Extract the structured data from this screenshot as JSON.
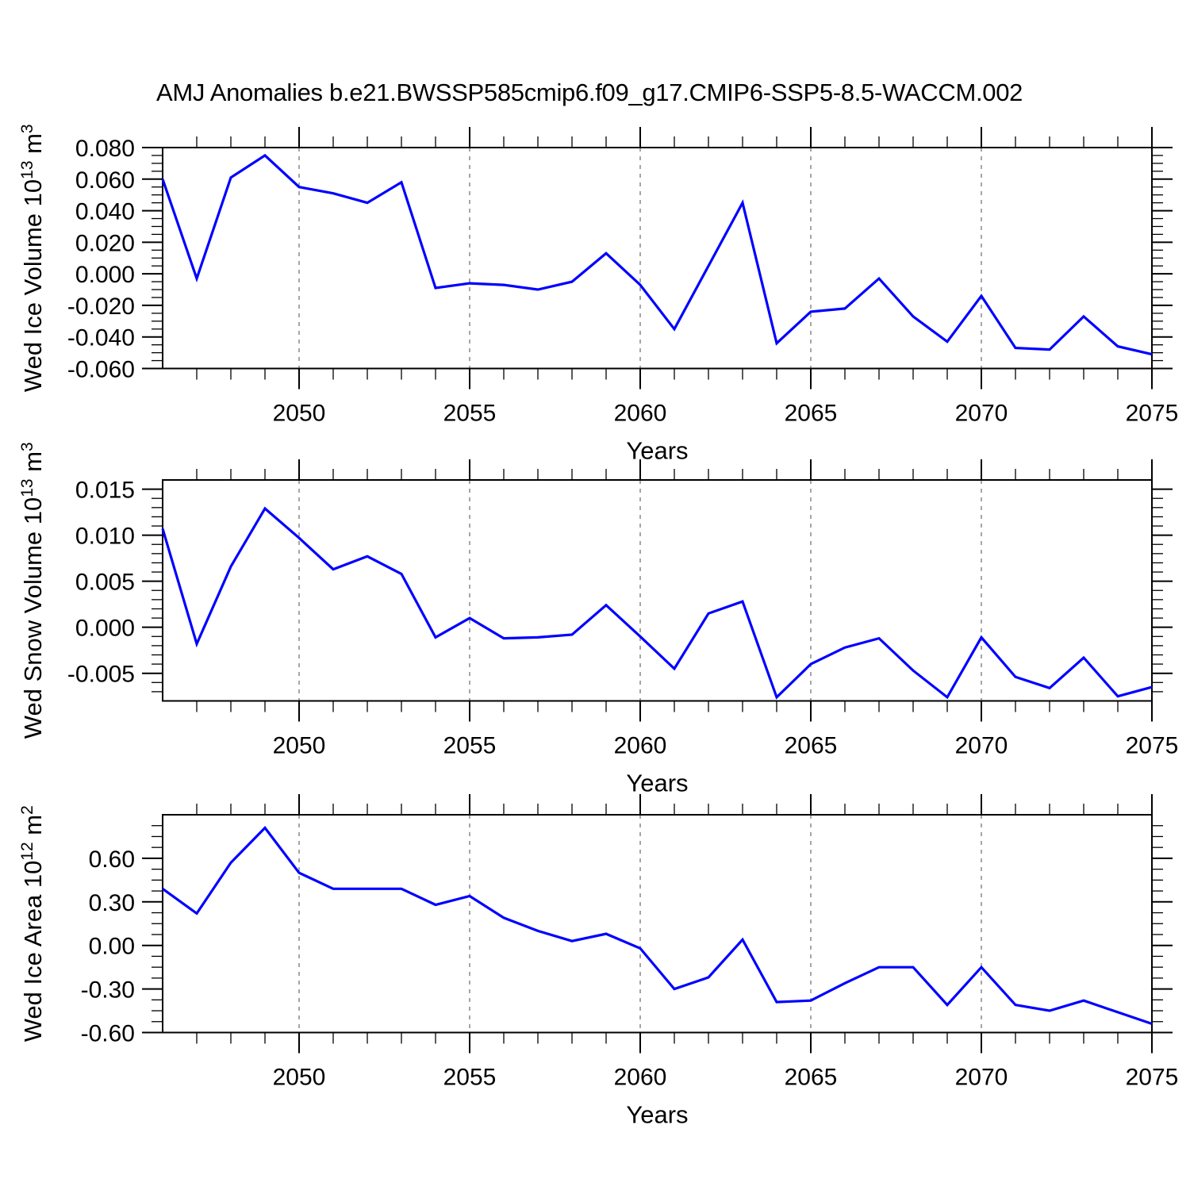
{
  "title": "AMJ Anomalies b.e21.BWSSP585cmip6.f09_g17.CMIP6-SSP5-8.5-WACCM.002",
  "colors": {
    "line": "#0000FF",
    "axis": "#000000",
    "gridline": "#888888",
    "background": "#FFFFFF",
    "text": "#000000"
  },
  "x_axis": {
    "title": "Years",
    "range": [
      2046,
      2075
    ],
    "major_ticks": [
      2050,
      2055,
      2060,
      2065,
      2070,
      2075
    ],
    "minor_step": 1,
    "dashed_gridlines": [
      2050,
      2055,
      2060,
      2065,
      2070
    ],
    "years": [
      2046,
      2047,
      2048,
      2049,
      2050,
      2051,
      2052,
      2053,
      2054,
      2055,
      2056,
      2057,
      2058,
      2059,
      2060,
      2061,
      2062,
      2063,
      2064,
      2065,
      2066,
      2067,
      2068,
      2069,
      2070,
      2071,
      2072,
      2073,
      2074,
      2075
    ]
  },
  "chart_data": [
    {
      "type": "line",
      "name": "wed-ice-volume",
      "ylabel_text": "Wed Ice Volume 10^13 m^3",
      "ylabel_parts": [
        {
          "t": "Wed Ice Volume 10"
        },
        {
          "t": "13",
          "sup": true
        },
        {
          "t": " m"
        },
        {
          "t": "3",
          "sup": true
        }
      ],
      "xlabel": "Years",
      "ylim": [
        -0.06,
        0.08
      ],
      "y_tick_labels": [
        "0.080",
        "0.060",
        "0.040",
        "0.020",
        "0.000",
        "-0.020",
        "-0.040",
        "-0.060"
      ],
      "y_minor_step": 0.005,
      "values": [
        0.06,
        -0.003,
        0.061,
        0.075,
        0.055,
        0.051,
        0.045,
        0.058,
        -0.009,
        -0.006,
        -0.007,
        -0.01,
        -0.005,
        0.013,
        -0.007,
        -0.035,
        0.005,
        0.045,
        -0.044,
        -0.024,
        -0.022,
        -0.003,
        -0.027,
        -0.043,
        -0.014,
        -0.047,
        -0.048,
        -0.027,
        -0.046,
        -0.051
      ]
    },
    {
      "type": "line",
      "name": "wed-snow-volume",
      "ylabel_text": "Wed Snow Volume 10^13 m^3",
      "ylabel_parts": [
        {
          "t": "Wed Snow Volume 10"
        },
        {
          "t": "13",
          "sup": true
        },
        {
          "t": " m"
        },
        {
          "t": "3",
          "sup": true
        }
      ],
      "xlabel": "Years",
      "ylim": [
        -0.008,
        0.016
      ],
      "y_tick_labels": [
        "0.015",
        "0.010",
        "0.005",
        "0.000",
        "-0.005"
      ],
      "y_minor_step": 0.001,
      "values": [
        0.0107,
        -0.0018,
        0.0066,
        0.0129,
        0.0097,
        0.0063,
        0.0077,
        0.0058,
        -0.0011,
        0.001,
        -0.0012,
        -0.0011,
        -0.0008,
        0.0024,
        -0.001,
        -0.0045,
        0.0015,
        0.0028,
        -0.0076,
        -0.004,
        -0.0022,
        -0.0012,
        -0.0047,
        -0.0076,
        -0.0011,
        -0.0054,
        -0.0066,
        -0.0033,
        -0.0075,
        -0.0065
      ]
    },
    {
      "type": "line",
      "name": "wed-ice-area",
      "ylabel_text": "Wed Ice Area 10^12 m^2",
      "ylabel_parts": [
        {
          "t": "Wed Ice Area 10"
        },
        {
          "t": "12",
          "sup": true
        },
        {
          "t": " m"
        },
        {
          "t": "2",
          "sup": true
        }
      ],
      "xlabel": "Years",
      "ylim": [
        -0.6,
        0.9
      ],
      "y_tick_labels": [
        "0.60",
        "0.30",
        "0.00",
        "-0.30",
        "-0.60"
      ],
      "y_minor_step": 0.075,
      "values": [
        0.39,
        0.22,
        0.57,
        0.81,
        0.5,
        0.39,
        0.39,
        0.39,
        0.28,
        0.34,
        0.19,
        0.1,
        0.03,
        0.08,
        -0.02,
        -0.3,
        -0.22,
        0.04,
        -0.39,
        -0.38,
        -0.26,
        -0.15,
        -0.15,
        -0.41,
        -0.15,
        -0.41,
        -0.45,
        -0.38,
        -0.46,
        -0.54
      ]
    }
  ]
}
